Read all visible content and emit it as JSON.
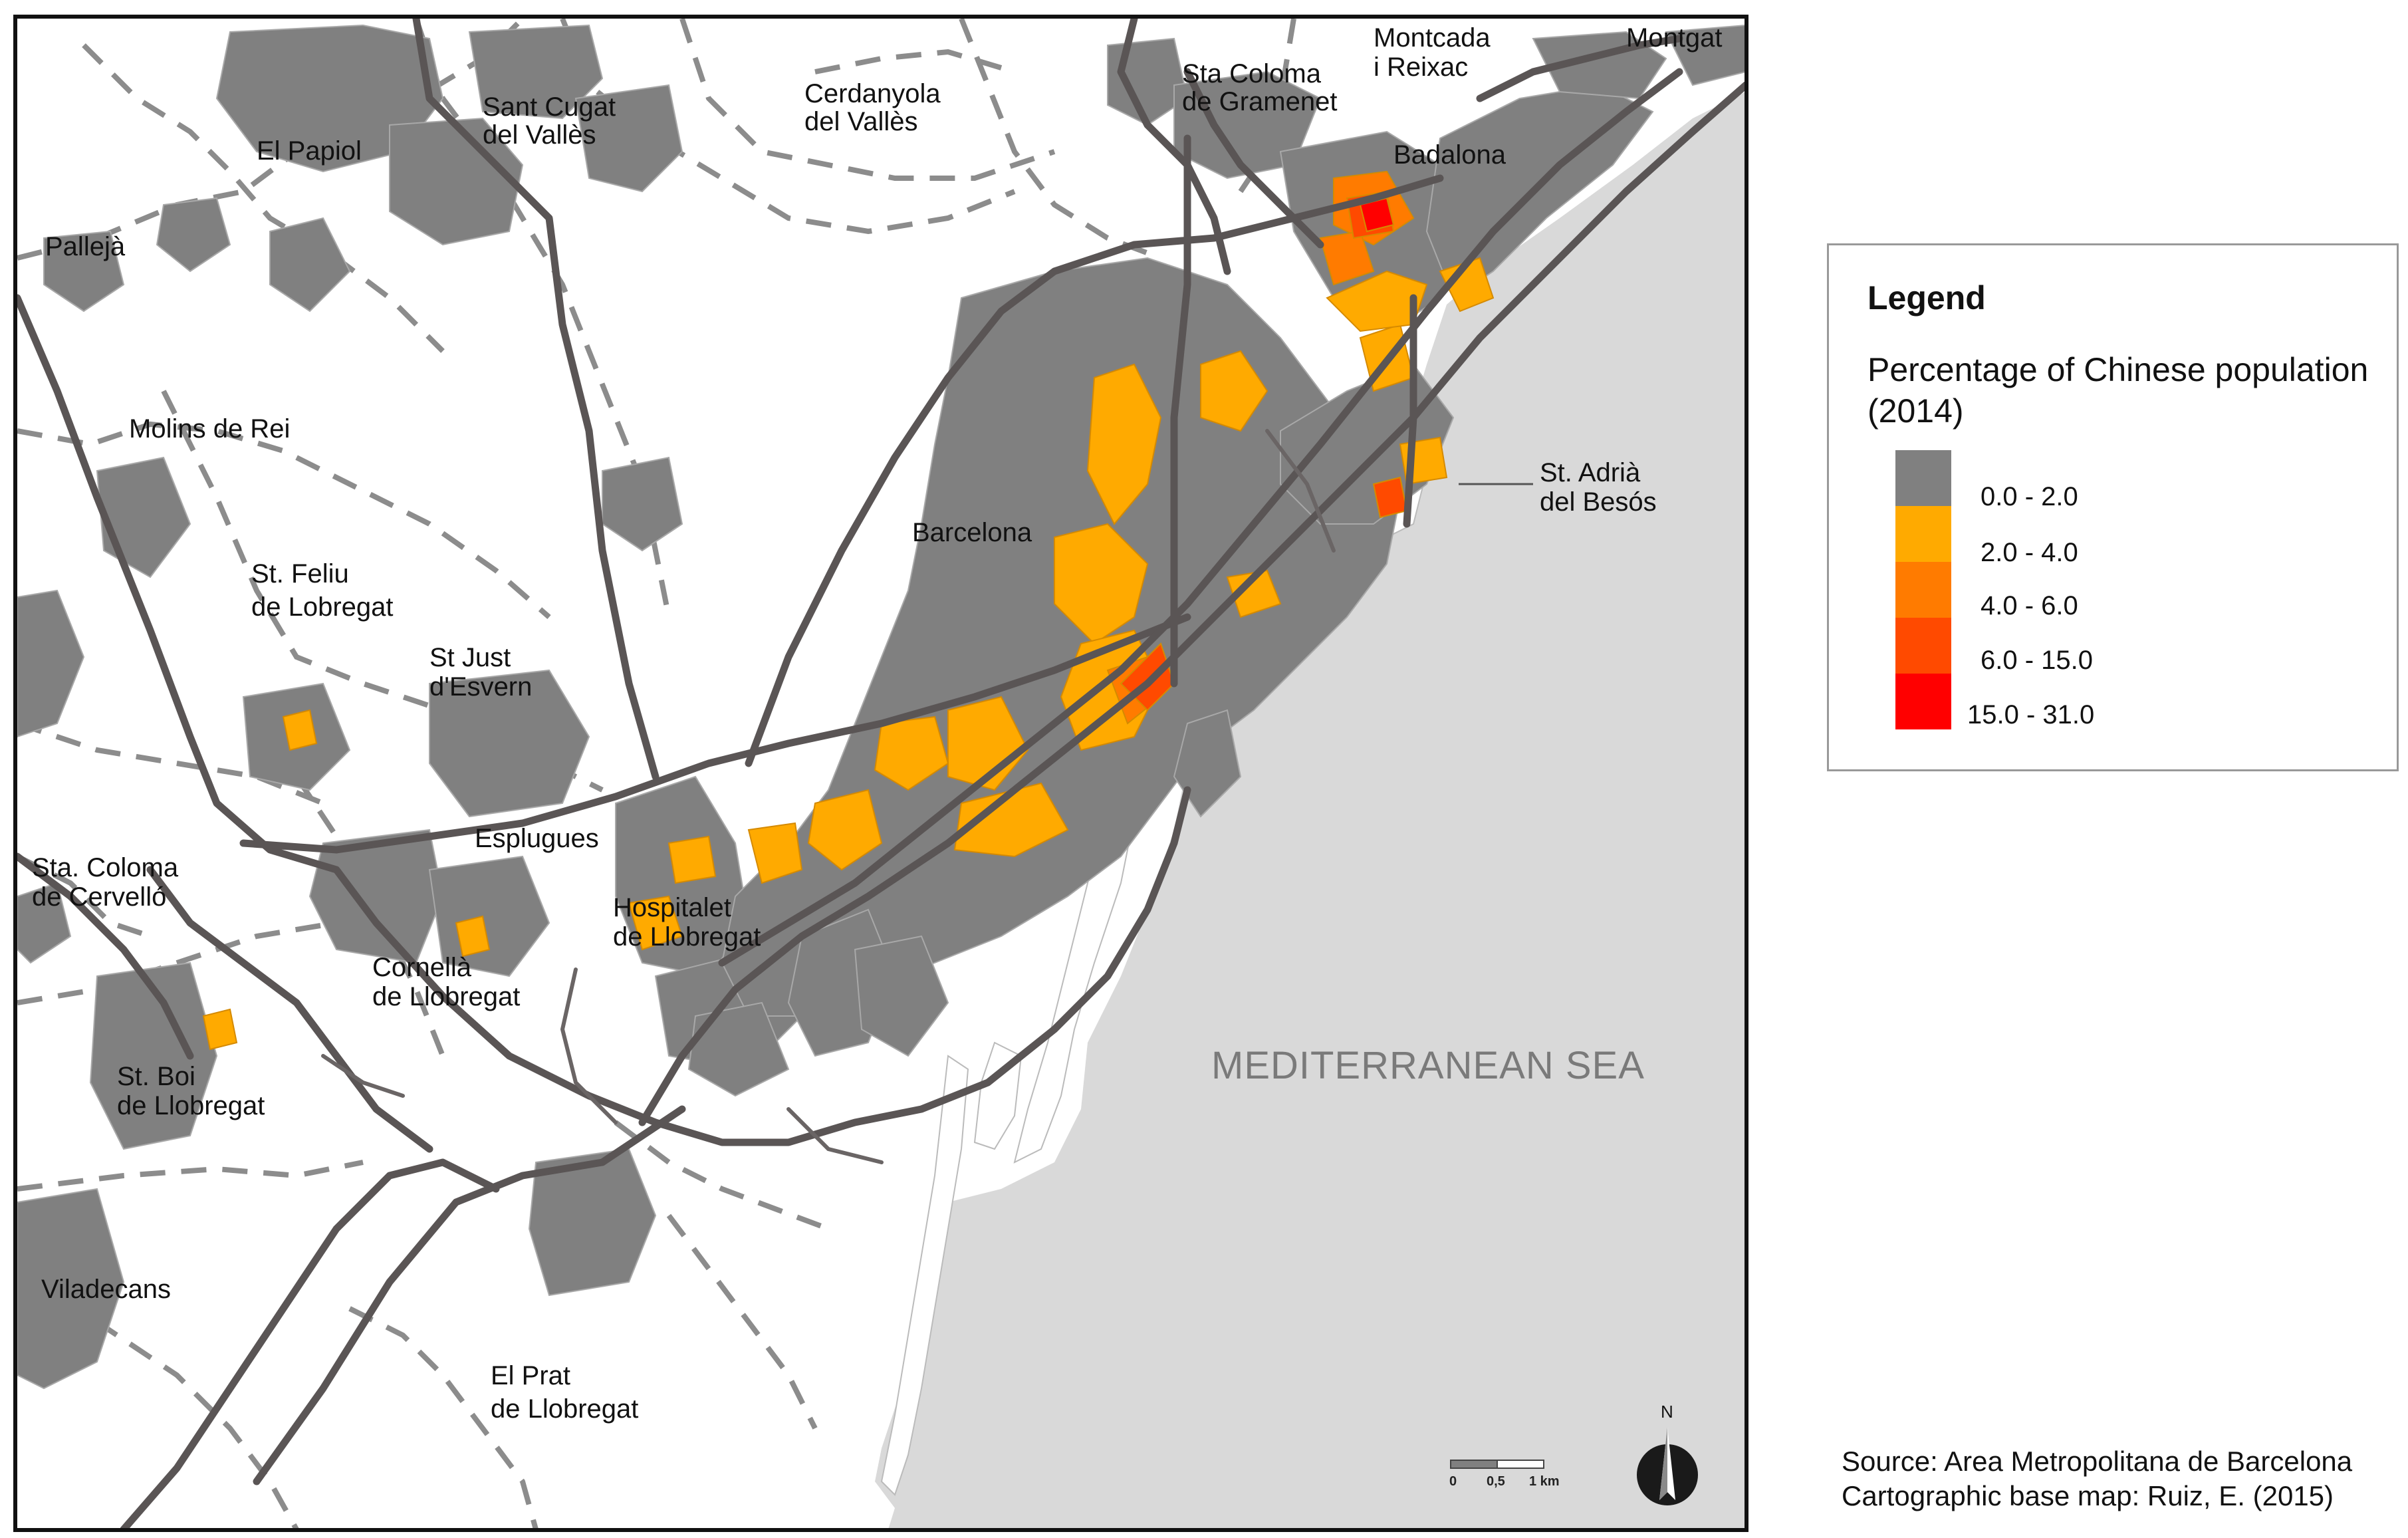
{
  "legend": {
    "title": "Legend",
    "subtitle": "Percentage of Chinese population (2014)",
    "classes": [
      {
        "label": "0.0 - 2.0",
        "color": "#808080"
      },
      {
        "label": "2.0 - 4.0",
        "color": "#ffaa00"
      },
      {
        "label": "4.0 - 6.0",
        "color": "#ff7b00"
      },
      {
        "label": "6.0 - 15.0",
        "color": "#ff4a00"
      },
      {
        "label": "15.0 - 31.0",
        "color": "#ff0000"
      }
    ]
  },
  "places": {
    "el_papiol": "El Papiol",
    "sant_cugat_1": "Sant Cugat",
    "sant_cugat_2": "del Vallès",
    "cerdanyola_1": "Cerdanyola",
    "cerdanyola_2": "del Vallès",
    "sta_coloma_gramenet_1": "Sta Coloma",
    "sta_coloma_gramenet_2": "de Gramenet",
    "montcada_1": "Montcada",
    "montcada_2": "i Reixac",
    "montgat": "Montgat",
    "pallejà": "Pallejà",
    "badalona": "Badalona",
    "molins": "Molins de Rei",
    "barcelona": "Barcelona",
    "st_adria_1": "St. Adrià",
    "st_adria_2": "del Besós",
    "st_feliu_1": "St. Feliu",
    "st_feliu_2": "de Lobregat",
    "st_just_1": "St Just",
    "st_just_2": "d'Esvern",
    "esplugues": "Esplugues",
    "sta_coloma_cervello_1": "Sta. Coloma",
    "sta_coloma_cervello_2": "de Cervelló",
    "hospitalet_1": "Hospitalet",
    "hospitalet_2": "de Llobregat",
    "cornella_1": "Cornellà",
    "cornella_2": "de Llobregat",
    "st_boi_1": "St. Boi",
    "st_boi_2": "de Llobregat",
    "viladecans": "Viladecans",
    "el_prat_1": "El Prat",
    "el_prat_2": "de Llobregat",
    "sea": "MEDITERRANEAN SEA"
  },
  "scale": {
    "ticks": [
      "0",
      "0,5",
      "1 km"
    ]
  },
  "north_label": "N",
  "source": {
    "line1": "Source: Area Metropolitana de Barcelona",
    "line2": "Cartographic base map: Ruiz, E. (2015)"
  },
  "colors": {
    "urban": "#808080",
    "sea": "#d9d9d9",
    "road": "#5a5555",
    "boundary": "#8c8c8c"
  }
}
